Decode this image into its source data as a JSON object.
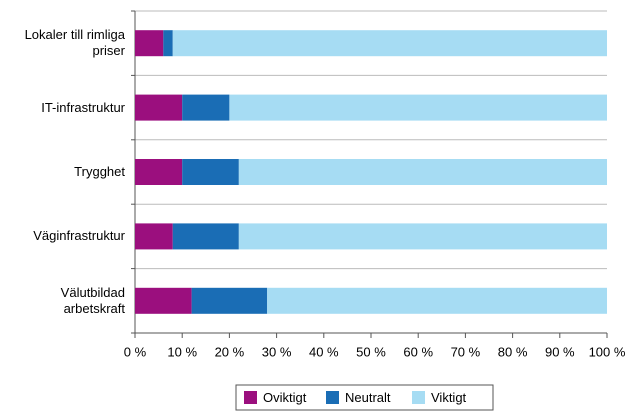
{
  "chart_data": {
    "type": "bar",
    "stacked": true,
    "orientation": "horizontal",
    "categories": [
      "Lokaler till rimliga priser",
      "IT-infrastruktur",
      "Trygghet",
      "Väginfrastruktur",
      "Välutbildad arbetskraft"
    ],
    "series": [
      {
        "name": "Oviktigt",
        "color": "#9b0f7e",
        "values": [
          6,
          10,
          10,
          8,
          12
        ]
      },
      {
        "name": "Neutralt",
        "color": "#1a6db5",
        "values": [
          2,
          10,
          12,
          14,
          16
        ]
      },
      {
        "name": "Viktigt",
        "color": "#a6dcf3",
        "values": [
          92,
          80,
          78,
          78,
          72
        ]
      }
    ],
    "xlim": [
      0,
      100
    ],
    "xticks": [
      {
        "value": 0,
        "label": "0 %"
      },
      {
        "value": 10,
        "label": "10 %"
      },
      {
        "value": 20,
        "label": "20 %"
      },
      {
        "value": 30,
        "label": "30 %"
      },
      {
        "value": 40,
        "label": "40 %"
      },
      {
        "value": 50,
        "label": "50 %"
      },
      {
        "value": 60,
        "label": "60 %"
      },
      {
        "value": 70,
        "label": "70 %"
      },
      {
        "value": 80,
        "label": "80 %"
      },
      {
        "value": 90,
        "label": "90 %"
      },
      {
        "value": 100,
        "label": "100 %"
      }
    ],
    "grid": true,
    "legend": "bottom"
  }
}
